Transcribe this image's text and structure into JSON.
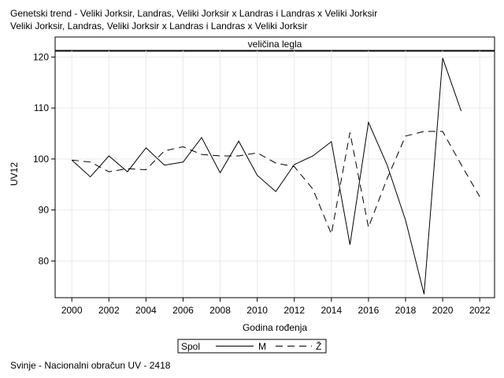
{
  "titles": {
    "line1": "Genetski trend - Veliki Jorksir, Landras, Veliki Jorksir x Landras i Landras x Veliki Jorksir",
    "line2": "Veliki Jorksir, Landras, Veliki Jorksir x Landras i Landras x Veliki Jorksir"
  },
  "footnote": "Svinje - Nacionalni obračun UV - 2418",
  "chart_data": {
    "type": "line",
    "panel_header": "veličina legla",
    "xlabel": "Godina rođenja",
    "ylabel": "UV12",
    "xlim": [
      1999.1,
      2022.8
    ],
    "ylim": [
      72.8,
      121.3
    ],
    "xticks": [
      2000,
      2002,
      2004,
      2006,
      2008,
      2010,
      2012,
      2014,
      2016,
      2018,
      2020,
      2022
    ],
    "yticks": [
      80,
      90,
      100,
      110,
      120
    ],
    "grid": true,
    "legend": {
      "title": "Spol",
      "placement": "bottom-center"
    },
    "series": [
      {
        "name": "M",
        "dash": "solid",
        "x": [
          2000,
          2001,
          2002,
          2003,
          2004,
          2005,
          2006,
          2007,
          2008,
          2009,
          2010,
          2011,
          2012,
          2013,
          2014,
          2015,
          2016,
          2017,
          2018,
          2019,
          2020,
          2021
        ],
        "y": [
          99.8,
          96.5,
          100.6,
          97.5,
          102.2,
          98.8,
          99.4,
          104.2,
          97.3,
          103.5,
          96.8,
          93.6,
          98.9,
          100.6,
          103.4,
          83.2,
          107.2,
          98.9,
          88.0,
          73.5,
          119.8,
          109.4
        ]
      },
      {
        "name": "Ž",
        "dash": "dashed",
        "x": [
          2000,
          2001,
          2002,
          2003,
          2004,
          2005,
          2006,
          2007,
          2008,
          2009,
          2010,
          2011,
          2012,
          2013,
          2014,
          2015,
          2016,
          2017,
          2018,
          2019,
          2020,
          2021,
          2022
        ],
        "y": [
          99.8,
          99.4,
          97.5,
          98.1,
          97.9,
          101.6,
          102.4,
          100.9,
          100.6,
          100.6,
          101.2,
          99.2,
          98.5,
          94.1,
          85.3,
          105.2,
          86.6,
          96.1,
          104.5,
          105.4,
          105.4,
          98.9,
          92.6
        ]
      }
    ]
  }
}
